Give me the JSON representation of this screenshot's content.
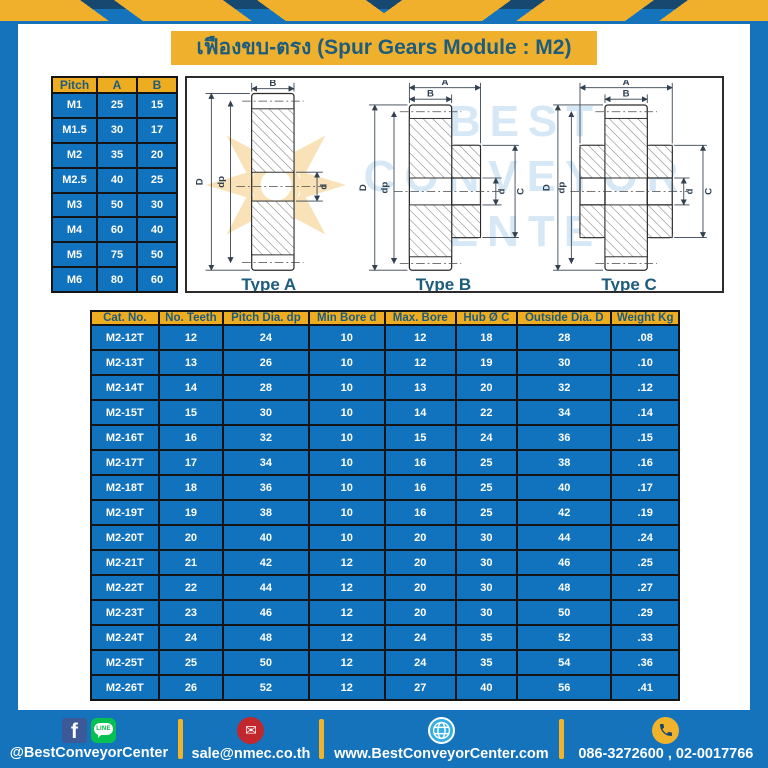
{
  "title": "เฟืองขบ-ตรง (Spur Gears Module : M2)",
  "pitch_table": {
    "headers": [
      "Pitch",
      "A",
      "B"
    ],
    "rows": [
      [
        "M1",
        "25",
        "15"
      ],
      [
        "M1.5",
        "30",
        "17"
      ],
      [
        "M2",
        "35",
        "20"
      ],
      [
        "M2.5",
        "40",
        "25"
      ],
      [
        "M3",
        "50",
        "30"
      ],
      [
        "M4",
        "60",
        "40"
      ],
      [
        "M5",
        "75",
        "50"
      ],
      [
        "M6",
        "80",
        "60"
      ]
    ]
  },
  "drawings": {
    "watermark_lines": [
      "BEST",
      "CONVEYOR",
      "CENTER"
    ],
    "types": [
      {
        "label": "Type A",
        "dims": {
          "width": "B",
          "outer": "D",
          "pitch": "dp",
          "bore": "d"
        }
      },
      {
        "label": "Type B",
        "dims": {
          "total": "A",
          "width": "B",
          "outer": "D",
          "pitch": "dp",
          "bore": "d",
          "hub": "C"
        }
      },
      {
        "label": "Type C",
        "dims": {
          "total": "A",
          "width": "B",
          "outer": "D",
          "pitch": "dp",
          "bore": "d",
          "hub": "C"
        }
      }
    ]
  },
  "main_table": {
    "headers": [
      "Cat. No.",
      "No. Teeth",
      "Pitch Dia. dp",
      "Min Bore d",
      "Max. Bore",
      "Hub Ø C",
      "Outside Dia. D",
      "Weight Kg"
    ],
    "rows": [
      [
        "M2-12T",
        "12",
        "24",
        "10",
        "12",
        "18",
        "28",
        ".08"
      ],
      [
        "M2-13T",
        "13",
        "26",
        "10",
        "12",
        "19",
        "30",
        ".10"
      ],
      [
        "M2-14T",
        "14",
        "28",
        "10",
        "13",
        "20",
        "32",
        ".12"
      ],
      [
        "M2-15T",
        "15",
        "30",
        "10",
        "14",
        "22",
        "34",
        ".14"
      ],
      [
        "M2-16T",
        "16",
        "32",
        "10",
        "15",
        "24",
        "36",
        ".15"
      ],
      [
        "M2-17T",
        "17",
        "34",
        "10",
        "16",
        "25",
        "38",
        ".16"
      ],
      [
        "M2-18T",
        "18",
        "36",
        "10",
        "16",
        "25",
        "40",
        ".17"
      ],
      [
        "M2-19T",
        "19",
        "38",
        "10",
        "16",
        "25",
        "42",
        ".19"
      ],
      [
        "M2-20T",
        "20",
        "40",
        "10",
        "20",
        "30",
        "44",
        ".24"
      ],
      [
        "M2-21T",
        "21",
        "42",
        "12",
        "20",
        "30",
        "46",
        ".25"
      ],
      [
        "M2-22T",
        "22",
        "44",
        "12",
        "20",
        "30",
        "48",
        ".27"
      ],
      [
        "M2-23T",
        "23",
        "46",
        "12",
        "20",
        "30",
        "50",
        ".29"
      ],
      [
        "M2-24T",
        "24",
        "48",
        "12",
        "24",
        "35",
        "52",
        ".33"
      ],
      [
        "M2-25T",
        "25",
        "50",
        "12",
        "24",
        "35",
        "54",
        ".36"
      ],
      [
        "M2-26T",
        "26",
        "52",
        "12",
        "27",
        "40",
        "56",
        ".41"
      ]
    ]
  },
  "footer": {
    "facebook_label": "f",
    "line_label": "LINE",
    "social": "@BestConveyorCenter",
    "email": "sale@nmec.co.th",
    "website": "www.BestConveyorCenter.com",
    "phone": "086-3272600 , 02-0017766"
  },
  "colors": {
    "frame_blue": "#1473bb",
    "navy_strip": "#17486f",
    "yellow": "#efb02d",
    "header_yellow": "#eead21",
    "cell_blue": "#1173bd",
    "dark_blue_text": "#1d5c7d"
  }
}
